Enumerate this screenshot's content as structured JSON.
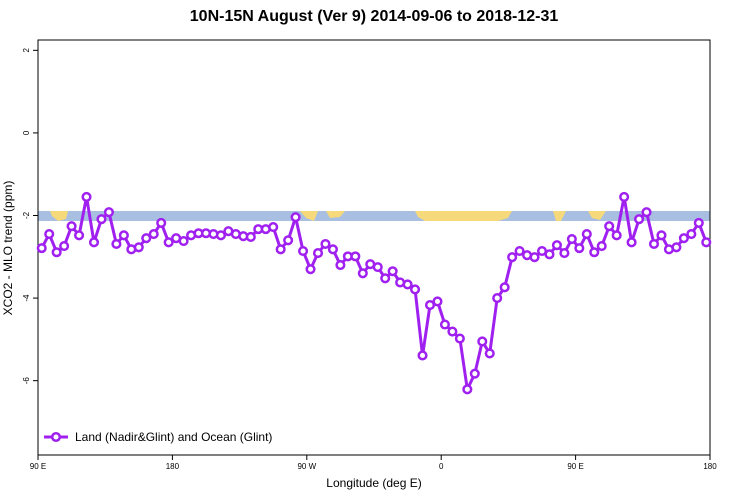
{
  "chart_data": {
    "type": "line",
    "title": "10N-15N August (Ver 9)   2014-09-06 to 2018-12-31",
    "x_label": "Longitude (deg E)",
    "y_label": "XCO2 - MLO trend (ppm)",
    "xlim": [
      90,
      540
    ],
    "ylim": [
      -7.8,
      2.25
    ],
    "xticks": [
      {
        "value": 90,
        "label": "90 E"
      },
      180,
      {
        "value": 270,
        "label": "90 W"
      },
      {
        "value": 360,
        "label": "0"
      },
      {
        "value": 450,
        "label": "90 E"
      },
      {
        "value": 540,
        "label": "180"
      }
    ],
    "yticks": [
      -6,
      -4,
      -2,
      0,
      2
    ],
    "legend_position": "bottom-left",
    "x": [
      92.5,
      97.5,
      102.5,
      107.5,
      112.5,
      117.5,
      122.5,
      127.5,
      132.5,
      137.5,
      142.5,
      147.5,
      152.5,
      157.5,
      162.5,
      167.5,
      172.5,
      177.5,
      182.5,
      187.5,
      192.5,
      197.5,
      202.5,
      207.5,
      212.5,
      217.5,
      222.5,
      227.5,
      232.5,
      237.5,
      242.5,
      247.5,
      252.5,
      257.5,
      262.5,
      267.5,
      272.5,
      277.5,
      282.5,
      287.5,
      292.5,
      297.5,
      302.5,
      307.5,
      312.5,
      317.5,
      322.5,
      327.5,
      332.5,
      337.5,
      342.5,
      347.5,
      352.5,
      357.5,
      362.5,
      367.5,
      372.5,
      377.5,
      382.5,
      387.5,
      392.5,
      397.5,
      402.5,
      407.5,
      412.5,
      417.5,
      422.5,
      427.5,
      432.5,
      437.5,
      442.5,
      447.5,
      452.5,
      457.5,
      462.5,
      467.5,
      472.5,
      477.5,
      482.5,
      487.5,
      492.5,
      497.5,
      502.5,
      507.5,
      512.5,
      517.5,
      522.5,
      527.5,
      532.5,
      537.5
    ],
    "series": [
      {
        "name": "Land (Nadir&Glint) and Ocean (Glint)",
        "color": "#a020f0",
        "values": [
          -2.79,
          -2.45,
          -2.89,
          -2.74,
          -2.26,
          -2.48,
          -1.55,
          -2.65,
          -2.09,
          -1.92,
          -2.69,
          -2.48,
          -2.82,
          -2.77,
          -2.55,
          -2.45,
          -2.18,
          -2.65,
          -2.55,
          -2.62,
          -2.48,
          -2.43,
          -2.43,
          -2.45,
          -2.48,
          -2.38,
          -2.45,
          -2.5,
          -2.52,
          -2.33,
          -2.33,
          -2.28,
          -2.82,
          -2.6,
          -2.04,
          -2.86,
          -3.3,
          -2.91,
          -2.69,
          -2.82,
          -3.2,
          -2.99,
          -2.99,
          -3.4,
          -3.18,
          -3.25,
          -3.52,
          -3.35,
          -3.62,
          -3.67,
          -3.79,
          -5.39,
          -4.17,
          -4.08,
          -4.64,
          -4.81,
          -4.98,
          -6.21,
          -5.83,
          -5.05,
          -5.34,
          -4.0,
          -3.74,
          -3.01,
          -2.86,
          -2.96,
          -3.01,
          -2.86,
          -2.94,
          -2.72,
          -2.91,
          -2.57,
          -2.79,
          -2.45,
          -2.89,
          -2.74,
          -2.26,
          -2.48,
          -1.55,
          -2.65,
          -2.09,
          -1.92,
          -2.69,
          -2.48,
          -2.82,
          -2.77,
          -2.55,
          -2.45,
          -2.18,
          -2.65
        ]
      }
    ]
  }
}
